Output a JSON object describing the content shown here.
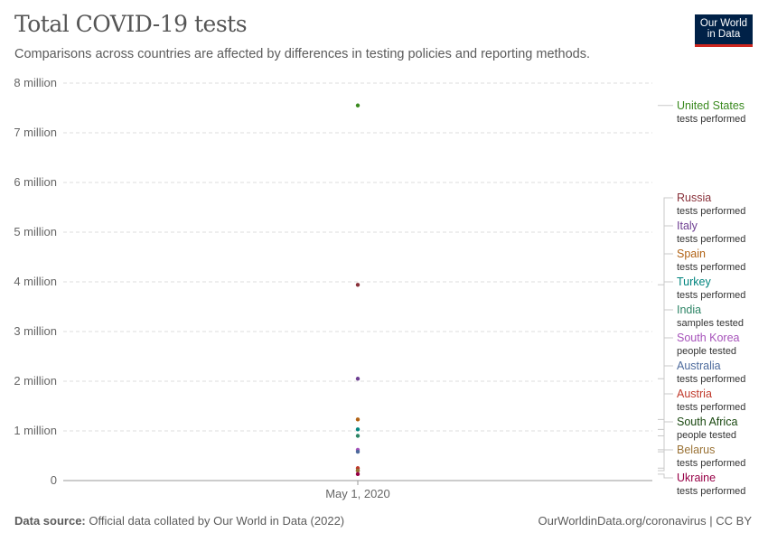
{
  "header": {
    "title": "Total COVID-19 tests",
    "subtitle": "Comparisons across countries are affected by differences in testing policies and reporting methods."
  },
  "logo": {
    "line1": "Our World",
    "line2": "in Data",
    "bg": "#002147",
    "accent": "#ce261e"
  },
  "footer": {
    "source_label": "Data source:",
    "source_text": " Official data collated by Our World in Data (2022)",
    "right_text": "OurWorldinData.org/coronavirus | CC BY"
  },
  "chart_data": {
    "type": "scatter",
    "title": "Total COVID-19 tests",
    "x_label_date": "May 1, 2020",
    "ylim": [
      0,
      8000000
    ],
    "y_ticks": [
      {
        "value": 0,
        "label": "0"
      },
      {
        "value": 1000000,
        "label": "1 million"
      },
      {
        "value": 2000000,
        "label": "2 million"
      },
      {
        "value": 3000000,
        "label": "3 million"
      },
      {
        "value": 4000000,
        "label": "4 million"
      },
      {
        "value": 5000000,
        "label": "5 million"
      },
      {
        "value": 6000000,
        "label": "6 million"
      },
      {
        "value": 7000000,
        "label": "7 million"
      },
      {
        "value": 8000000,
        "label": "8 million"
      }
    ],
    "grid": true,
    "series": [
      {
        "name": "United States",
        "metric": "tests performed",
        "value": 7550000,
        "color": "#3a8a1f"
      },
      {
        "name": "Russia",
        "metric": "tests performed",
        "value": 3940000,
        "color": "#883039"
      },
      {
        "name": "Italy",
        "metric": "tests performed",
        "value": 2050000,
        "color": "#6d3e91"
      },
      {
        "name": "Spain",
        "metric": "tests performed",
        "value": 1230000,
        "color": "#b16214"
      },
      {
        "name": "Turkey",
        "metric": "tests performed",
        "value": 1030000,
        "color": "#00847e"
      },
      {
        "name": "India",
        "metric": "samples tested",
        "value": 900000,
        "color": "#2c8465"
      },
      {
        "name": "South Korea",
        "metric": "people tested",
        "value": 620000,
        "color": "#a652ba"
      },
      {
        "name": "Australia",
        "metric": "tests performed",
        "value": 580000,
        "color": "#4c6a9c"
      },
      {
        "name": "Austria",
        "metric": "tests performed",
        "value": 250000,
        "color": "#c0392b"
      },
      {
        "name": "South Africa",
        "metric": "people tested",
        "value": 200000,
        "color": "#18470f"
      },
      {
        "name": "Belarus",
        "metric": "tests performed",
        "value": 200000,
        "color": "#9a7235"
      },
      {
        "name": "Ukraine",
        "metric": "tests performed",
        "value": 130000,
        "color": "#970046"
      }
    ]
  }
}
